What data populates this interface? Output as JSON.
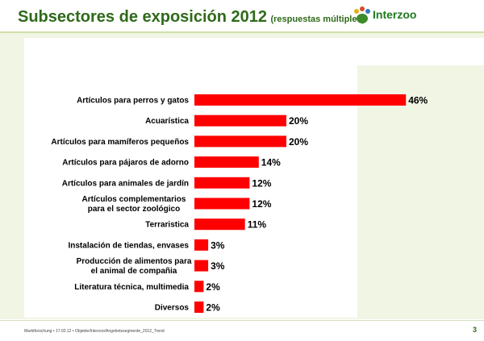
{
  "header": {
    "title": "Subsectores de exposición 2012",
    "subtitle": "(respuestas múltiples)",
    "logo_text": "Interzoo"
  },
  "footer": {
    "text": "Marktforschung • 17.02.12 • Objekte/Interzoo/Angebotssegmente_2012_Trend",
    "page": "3"
  },
  "colors": {
    "bar": "#ff0000",
    "title": "#2f6a1a",
    "panel": "#f1f5e4"
  },
  "chart_data": {
    "type": "bar",
    "orientation": "horizontal",
    "categories": [
      [
        "Artículos para perros y gatos"
      ],
      [
        "Acuarística"
      ],
      [
        "Artículos para mamíferos pequeños"
      ],
      [
        "Artículos para pájaros de adorno"
      ],
      [
        "Artículos para animales de jardín"
      ],
      [
        "Artículos complementarios",
        "para el sector zoológico"
      ],
      [
        "Terraristica"
      ],
      [
        "Instalación de tiendas, envases"
      ],
      [
        "Producción de alimentos para",
        "el animal de compañia"
      ],
      [
        "Literatura técnica, multimedia"
      ],
      [
        "Diversos"
      ]
    ],
    "values": [
      46,
      20,
      20,
      14,
      12,
      12,
      11,
      3,
      3,
      2,
      2
    ],
    "value_labels": [
      "46%",
      "20%",
      "20%",
      "14%",
      "12%",
      "12%",
      "11%",
      "3%",
      "3%",
      "2%",
      "2%"
    ],
    "unit": "%",
    "grid": false
  }
}
